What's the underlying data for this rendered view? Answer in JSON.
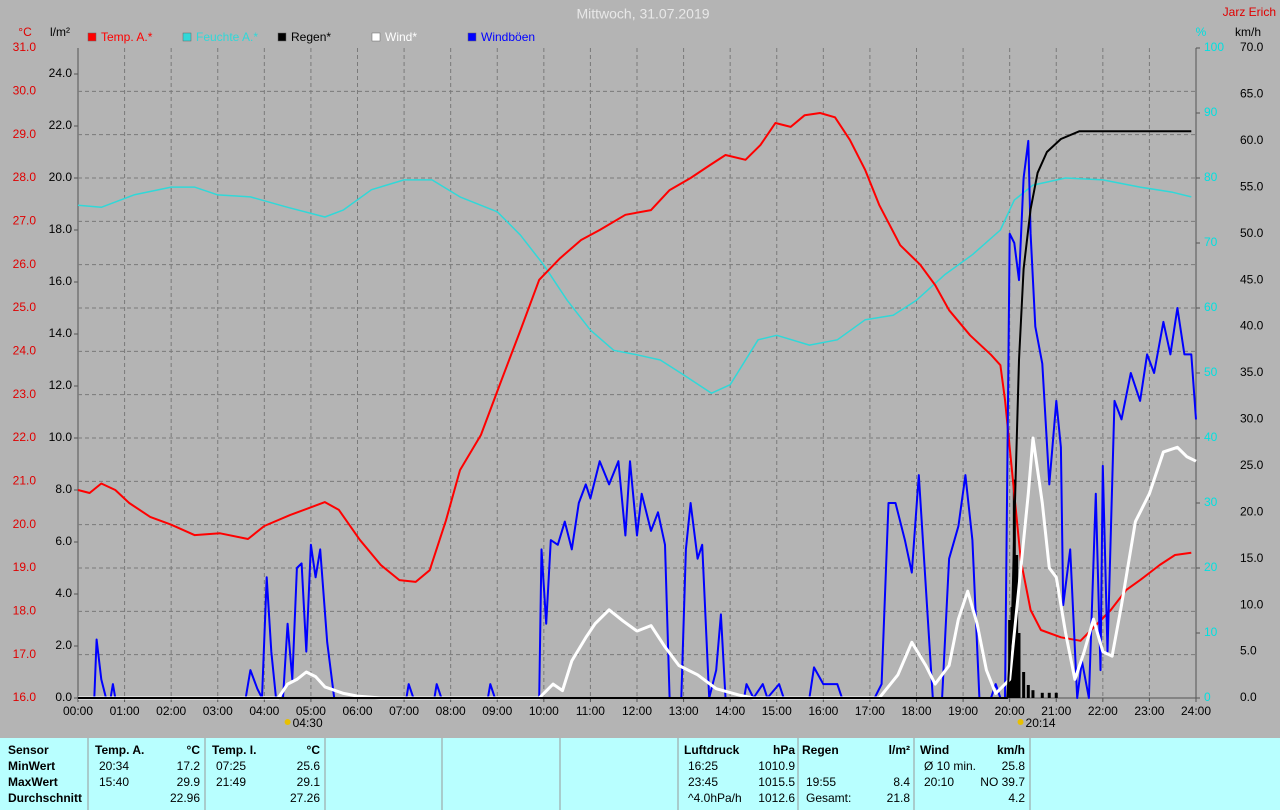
{
  "chart_data": {
    "type": "line",
    "title": "Mittwoch, 31.07.2019",
    "owner": "Jarz Erich",
    "units": {
      "y": "°C",
      "y2": "l/m²",
      "y3": "%",
      "y4": "km/h"
    },
    "xlim": [
      0,
      24
    ],
    "xticks": [
      {
        "value": 0,
        "label": "00:00"
      },
      {
        "value": 1,
        "label": "01:00"
      },
      {
        "value": 2,
        "label": "02:00"
      },
      {
        "value": 3,
        "label": "03:00"
      },
      {
        "value": 4,
        "label": "04:00"
      },
      {
        "value": 5,
        "label": "05:00"
      },
      {
        "value": 6,
        "label": "06:00"
      },
      {
        "value": 7,
        "label": "07:00"
      },
      {
        "value": 8,
        "label": "08:00"
      },
      {
        "value": 9,
        "label": "09:00"
      },
      {
        "value": 10,
        "label": "10:00"
      },
      {
        "value": 11,
        "label": "11:00"
      },
      {
        "value": 12,
        "label": "12:00"
      },
      {
        "value": 13,
        "label": "13:00"
      },
      {
        "value": 14,
        "label": "14:00"
      },
      {
        "value": 15,
        "label": "15:00"
      },
      {
        "value": 16,
        "label": "16:00"
      },
      {
        "value": 17,
        "label": "17:00"
      },
      {
        "value": 18,
        "label": "18:00"
      },
      {
        "value": 19,
        "label": "19:00"
      },
      {
        "value": 20,
        "label": "20:00"
      },
      {
        "value": 21,
        "label": "21:00"
      },
      {
        "value": 22,
        "label": "22:00"
      },
      {
        "value": 23,
        "label": "23:00"
      },
      {
        "value": 24,
        "label": "24:00"
      }
    ],
    "ylim": [
      16,
      31
    ],
    "yticks": [
      {
        "value": 16,
        "label": "16.0"
      },
      {
        "value": 17,
        "label": "17.0"
      },
      {
        "value": 18,
        "label": "18.0"
      },
      {
        "value": 19,
        "label": "19.0"
      },
      {
        "value": 20,
        "label": "20.0"
      },
      {
        "value": 21,
        "label": "21.0"
      },
      {
        "value": 22,
        "label": "22.0"
      },
      {
        "value": 23,
        "label": "23.0"
      },
      {
        "value": 24,
        "label": "24.0"
      },
      {
        "value": 25,
        "label": "25.0"
      },
      {
        "value": 26,
        "label": "26.0"
      },
      {
        "value": 27,
        "label": "27.0"
      },
      {
        "value": 28,
        "label": "28.0"
      },
      {
        "value": 29,
        "label": "29.0"
      },
      {
        "value": 30,
        "label": "30.0"
      },
      {
        "value": 31,
        "label": "31.0"
      }
    ],
    "y2lim": [
      0,
      25
    ],
    "y2ticks": [
      {
        "value": 0,
        "label": "0.0"
      },
      {
        "value": 2,
        "label": "2.0"
      },
      {
        "value": 4,
        "label": "4.0"
      },
      {
        "value": 6,
        "label": "6.0"
      },
      {
        "value": 8,
        "label": "8.0"
      },
      {
        "value": 10,
        "label": "10.0"
      },
      {
        "value": 12,
        "label": "12.0"
      },
      {
        "value": 14,
        "label": "14.0"
      },
      {
        "value": 16,
        "label": "16.0"
      },
      {
        "value": 18,
        "label": "18.0"
      },
      {
        "value": 20,
        "label": "20.0"
      },
      {
        "value": 22,
        "label": "22.0"
      },
      {
        "value": 24,
        "label": "24.0"
      }
    ],
    "y3lim": [
      0,
      100
    ],
    "y3ticks": [
      0,
      10,
      20,
      30,
      40,
      50,
      60,
      70,
      80,
      90,
      100
    ],
    "y4lim": [
      0,
      70
    ],
    "y4ticks": [
      {
        "value": 0,
        "label": "0.0"
      },
      {
        "value": 5,
        "label": "5.0"
      },
      {
        "value": 10,
        "label": "10.0"
      },
      {
        "value": 15,
        "label": "15.0"
      },
      {
        "value": 20,
        "label": "20.0"
      },
      {
        "value": 25,
        "label": "25.0"
      },
      {
        "value": 30,
        "label": "30.0"
      },
      {
        "value": 35,
        "label": "35.0"
      },
      {
        "value": 40,
        "label": "40.0"
      },
      {
        "value": 45,
        "label": "45.0"
      },
      {
        "value": 50,
        "label": "50.0"
      },
      {
        "value": 55,
        "label": "55.0"
      },
      {
        "value": 60,
        "label": "60.0"
      },
      {
        "value": 65,
        "label": "65.0"
      },
      {
        "value": 70,
        "label": "70.0"
      }
    ],
    "grid": true,
    "series": [
      {
        "name": "Temp. A.*",
        "color": "#ff0000",
        "axis": "y",
        "x": [
          0,
          0.25,
          0.5,
          0.8,
          1.1,
          1.55,
          2,
          2.5,
          3.05,
          3.65,
          4,
          4.55,
          5.3,
          5.6,
          6.05,
          6.5,
          6.9,
          7.25,
          7.55,
          7.9,
          8.2,
          8.65,
          9.05,
          9.5,
          9.9,
          10.35,
          10.8,
          11.2,
          11.75,
          12.3,
          12.7,
          13.15,
          13.57,
          13.9,
          14.33,
          14.65,
          14.97,
          15.3,
          15.6,
          15.93,
          16.25,
          16.57,
          16.9,
          17.2,
          17.65,
          18.08,
          18.4,
          18.7,
          19.15,
          19.6,
          19.8,
          19.9,
          20.07,
          20.24,
          20.45,
          20.67,
          21.1,
          21.52,
          21.75,
          22.17,
          22.5,
          22.8,
          23.22,
          23.55,
          23.9
        ],
        "values": [
          20.8,
          20.73,
          20.95,
          20.8,
          20.5,
          20.18,
          20.0,
          19.76,
          19.8,
          19.67,
          19.97,
          20.22,
          20.52,
          20.34,
          19.65,
          19.07,
          18.72,
          18.68,
          18.95,
          20.1,
          21.26,
          22.07,
          23.22,
          24.49,
          25.65,
          26.15,
          26.57,
          26.8,
          27.15,
          27.26,
          27.72,
          28.0,
          28.3,
          28.53,
          28.42,
          28.76,
          29.27,
          29.18,
          29.45,
          29.5,
          29.4,
          28.88,
          28.18,
          27.38,
          26.45,
          26.0,
          25.53,
          24.95,
          24.37,
          23.92,
          23.68,
          22.88,
          21.03,
          19.18,
          18.03,
          17.57,
          17.4,
          17.32,
          17.57,
          18.03,
          18.49,
          18.72,
          19.07,
          19.3,
          19.35
        ]
      },
      {
        "name": "Feuchte A.*",
        "color": "#30d8d8",
        "axis": "y3",
        "x": [
          0,
          0.5,
          1.2,
          2,
          2.5,
          3,
          3.7,
          4.5,
          5.3,
          5.7,
          6.3,
          7,
          7.6,
          8.2,
          9,
          9.5,
          10,
          10.5,
          11,
          11.5,
          12,
          12.5,
          13,
          13.6,
          14,
          14.6,
          15,
          15.7,
          16.3,
          16.9,
          17.5,
          18,
          18.6,
          19.2,
          19.8,
          20.1,
          20.5,
          21.2,
          22,
          22.8,
          23.5,
          23.9
        ],
        "values": [
          75.8,
          75.5,
          77.4,
          78.6,
          78.6,
          77.4,
          77.1,
          75.5,
          74.0,
          75.1,
          78.2,
          79.7,
          79.7,
          77.1,
          74.8,
          71.2,
          66.6,
          61.2,
          56.6,
          53.5,
          52.8,
          52.0,
          49.7,
          46.9,
          48.2,
          55.1,
          55.8,
          54.3,
          55.1,
          58.2,
          58.9,
          61.2,
          65.1,
          68.2,
          72.0,
          76.6,
          78.9,
          80.0,
          79.7,
          78.6,
          77.8,
          77.1
        ]
      },
      {
        "name": "Regen*",
        "color": "#000000",
        "axis": "y2",
        "x": [
          0,
          19.95,
          20.05,
          20.12,
          20.2,
          20.3,
          20.45,
          20.6,
          20.8,
          21.1,
          21.5,
          23.9
        ],
        "values": [
          0,
          0,
          3,
          8,
          13,
          16.5,
          18.8,
          20.2,
          21,
          21.5,
          21.8,
          21.8
        ]
      },
      {
        "name": "Wind*",
        "color": "#ffffff",
        "axis": "y4",
        "x": [
          0,
          4.3,
          4.5,
          4.7,
          4.9,
          5.1,
          5.3,
          5.7,
          6,
          6.5,
          9.9,
          10.2,
          10.4,
          10.6,
          10.9,
          11.1,
          11.4,
          11.7,
          12,
          12.3,
          12.6,
          12.9,
          13.3,
          13.7,
          14.2,
          14.5,
          17.2,
          17.6,
          17.9,
          18.2,
          18.4,
          18.7,
          18.9,
          19.1,
          19.3,
          19.5,
          19.7,
          20,
          20.2,
          20.4,
          20.5,
          20.7,
          20.85,
          21,
          21.2,
          21.4,
          21.6,
          21.8,
          22,
          22.2,
          22.4,
          22.7,
          23,
          23.3,
          23.6,
          23.8,
          24
        ],
        "values": [
          0,
          0,
          1.5,
          2,
          2.8,
          2.3,
          1.2,
          0.5,
          0.2,
          0,
          0,
          1.5,
          0.8,
          4,
          6.5,
          8,
          9.5,
          8.3,
          7.2,
          7.8,
          5.5,
          3.5,
          2.5,
          1,
          0.3,
          0,
          0,
          2.5,
          6,
          3.5,
          1.5,
          3.5,
          8.5,
          11.5,
          8,
          3,
          0.5,
          2,
          12,
          22,
          28,
          21,
          14,
          13,
          7,
          2,
          5,
          8.5,
          5,
          4.5,
          10,
          19,
          22,
          26.5,
          27,
          26,
          25.5
        ]
      },
      {
        "name": "Windböen",
        "color": "#0000ff",
        "axis": "y4",
        "x": [
          0,
          0.35,
          0.4,
          0.5,
          0.6,
          0.7,
          0.75,
          0.8,
          3.6,
          3.7,
          3.85,
          3.95,
          4.05,
          4.15,
          4.25,
          4.4,
          4.5,
          4.6,
          4.7,
          4.8,
          4.9,
          5.0,
          5.1,
          5.2,
          5.35,
          5.5,
          7.05,
          7.1,
          7.2,
          7.65,
          7.7,
          7.8,
          8.8,
          8.85,
          8.95,
          9.9,
          9.95,
          10.05,
          10.15,
          10.3,
          10.45,
          10.6,
          10.75,
          10.9,
          11.0,
          11.2,
          11.4,
          11.6,
          11.75,
          11.85,
          12.0,
          12.1,
          12.3,
          12.45,
          12.6,
          12.7,
          12.95,
          13.05,
          13.15,
          13.3,
          13.4,
          13.55,
          13.7,
          13.8,
          13.9,
          14.3,
          14.35,
          14.5,
          14.7,
          14.8,
          15.05,
          15.15,
          15.7,
          15.8,
          16.0,
          16.3,
          16.4,
          17.1,
          17.25,
          17.4,
          17.55,
          17.75,
          17.9,
          18.05,
          18.2,
          18.35,
          18.55,
          18.7,
          18.9,
          19.05,
          19.2,
          19.35,
          19.6,
          19.7,
          19.8,
          19.9,
          20.0,
          20.1,
          20.2,
          20.3,
          20.4,
          20.45,
          20.55,
          20.7,
          20.85,
          21.0,
          21.1,
          21.15,
          21.3,
          21.45,
          21.55,
          21.7,
          21.85,
          21.95,
          22.0,
          22.1,
          22.25,
          22.4,
          22.6,
          22.8,
          22.95,
          23.1,
          23.3,
          23.45,
          23.6,
          23.75,
          23.9,
          24
        ],
        "values": [
          0,
          0,
          6.3,
          2,
          0,
          0,
          1.5,
          0,
          0,
          3,
          1,
          0,
          13,
          5,
          0,
          0,
          8,
          2,
          14,
          14.5,
          5,
          16.5,
          13,
          16,
          6,
          0,
          0,
          1.5,
          0,
          0,
          1.5,
          0,
          0,
          1.5,
          0,
          0,
          16,
          8,
          17,
          16.5,
          19,
          16,
          21,
          23,
          21.5,
          25.5,
          23,
          25.5,
          17.5,
          25.5,
          17.5,
          22,
          18,
          20,
          16.5,
          0,
          0,
          16,
          21,
          15,
          16.5,
          0,
          3,
          9,
          0,
          0,
          1.5,
          0,
          1.5,
          0,
          1.5,
          0,
          0,
          3.3,
          1.5,
          1.5,
          0,
          0,
          1.5,
          21,
          21,
          17,
          13.5,
          24,
          12,
          0,
          0,
          15,
          18.5,
          24,
          17,
          0,
          0,
          1.5,
          0,
          0,
          50,
          49,
          45,
          56,
          60,
          50,
          40,
          36,
          23,
          32,
          27,
          10,
          16,
          0,
          4,
          0,
          22,
          3,
          25,
          5,
          32,
          30,
          35,
          32,
          37,
          35,
          40.5,
          37,
          42,
          37,
          37,
          30
        ]
      }
    ],
    "rain_rate": {
      "axis": "y2",
      "color": "#000000",
      "x": [
        20.0,
        20.05,
        20.1,
        20.15,
        20.2,
        20.3,
        20.4,
        20.5,
        20.7,
        20.85,
        21.0
      ],
      "values": [
        3.0,
        3.5,
        8.4,
        5.5,
        2.5,
        1.0,
        0.5,
        0.3,
        0.2,
        0.2,
        0.2
      ]
    },
    "sun_events": [
      {
        "value": 4.5,
        "label": "04:30"
      },
      {
        "value": 20.233,
        "label": "20:14"
      }
    ],
    "table": {
      "row_labels": [
        "Sensor",
        "MinWert",
        "MaxWert",
        "Durchschnitt"
      ],
      "groups": [
        {
          "title": "Temp. A.",
          "unit": "°C",
          "rows": [
            [
              "20:34",
              "17.2"
            ],
            [
              "15:40",
              "29.9"
            ],
            [
              "22.96"
            ]
          ]
        },
        {
          "title": "Temp. I.",
          "unit": "°C",
          "rows": [
            [
              "07:25",
              "25.6"
            ],
            [
              "21:49",
              "29.1"
            ],
            [
              "27.26"
            ]
          ]
        },
        {
          "title": "Luftdruck",
          "unit": "hPa",
          "rows": [
            [
              "16:25",
              "1010.9"
            ],
            [
              "23:45",
              "1015.5"
            ],
            [
              "^4.0hPa/h",
              "1012.6"
            ]
          ]
        },
        {
          "title": "Regen",
          "unit": "l/m²",
          "rows": [
            null,
            [
              "19:55",
              "8.4"
            ],
            [
              "Gesamt:",
              "21.8"
            ]
          ]
        },
        {
          "title": "Wind",
          "unit": "km/h",
          "rows": [
            [
              "Ø 10 min.",
              "25.8"
            ],
            [
              "20:10",
              "NO 39.7"
            ],
            [
              "4.2"
            ]
          ]
        }
      ]
    }
  }
}
